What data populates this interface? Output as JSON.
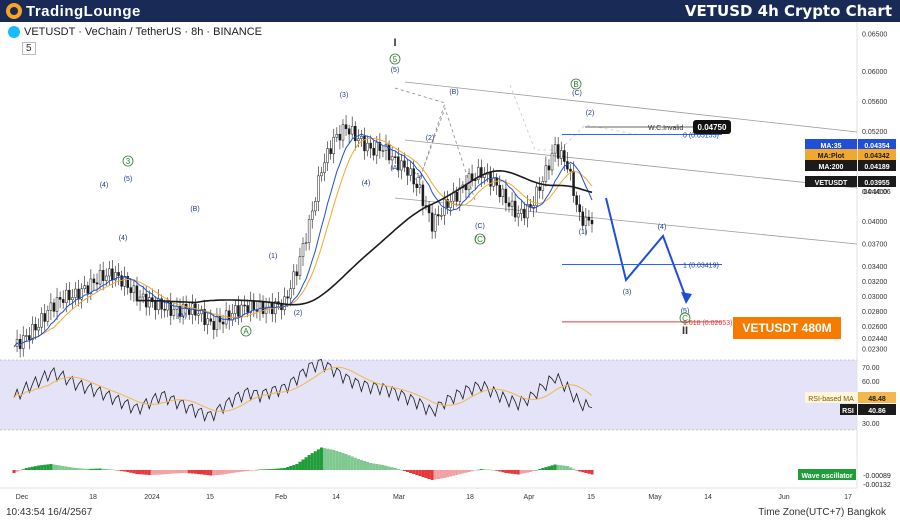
{
  "header": {
    "brand": "TradingLounge",
    "title": "VETUSD 4h Crypto Chart"
  },
  "symbol": {
    "line": "VETUSDT · VeChain / TetherUS · 8h · BINANCE",
    "interval_box": "5"
  },
  "badge": "VETUSDT 480M",
  "colors": {
    "header_bg": "#1a2a57",
    "badge_bg": "#f57c00",
    "ma35": "#1f4fd8",
    "ma_plot": "#f0a830",
    "ma200": "#1b1b1b",
    "rsi": "#1b1b1b",
    "rsi_ma": "#f2b84b",
    "positive": "#1f9d3a",
    "negative": "#e5383b",
    "fib_blue": "#2962ff",
    "fib_red": "#e5383b"
  },
  "chart_data": [
    {
      "type": "line",
      "subtype": "candlestick",
      "series_labels": [
        "MA:35",
        "MA:Plot",
        "MA:200",
        "VETUSDT"
      ],
      "price_axis": [
        "0.06500",
        "0.06000",
        "0.05600",
        "0.05200",
        "0.04800",
        "0.04400",
        "0.04000",
        "0.03700",
        "0.03400",
        "0.03200",
        "0.03000",
        "0.02800",
        "0.02600",
        "0.02440",
        "0.02300"
      ],
      "time_axis": [
        "Dec",
        "18",
        "2024",
        "15",
        "Feb",
        "14",
        "Mar",
        "18",
        "Apr",
        "15",
        "May",
        "14",
        "Jun",
        "17"
      ],
      "last_values": {
        "ma35": "0.04354",
        "ma_plot": "0.04342",
        "ma200": "0.04189",
        "price": "0.03955",
        "countdown": "04:16:06"
      },
      "fib_levels": [
        {
          "label": "0 (0.05155)",
          "value": 0.05155
        },
        {
          "label": "1 (0.03419)",
          "value": 0.03419
        },
        {
          "label": "1.618 (0.02653)",
          "value": 0.02653
        }
      ],
      "invalidation": {
        "label": "W.C.Invalid",
        "value": "0.04750"
      },
      "wave_labels": [
        "I",
        "5",
        "(5)",
        "(3)",
        "(B)",
        "(A)",
        "(2)",
        "(4)",
        "(1)",
        "(C)",
        "3",
        "(5)",
        "(4)",
        "(B)",
        "(A)",
        "A",
        "(1)",
        "(2)",
        "(4)",
        "(C)",
        "B",
        "(C)",
        "(2)",
        "(1)",
        "(4)",
        "(3)",
        "(5)",
        "C",
        "II"
      ],
      "close_series": [
        0.0232,
        0.0245,
        0.0262,
        0.0285,
        0.0298,
        0.0301,
        0.0312,
        0.0325,
        0.033,
        0.0318,
        0.03,
        0.0292,
        0.0286,
        0.028,
        0.0283,
        0.0278,
        0.0262,
        0.0268,
        0.028,
        0.0286,
        0.0283,
        0.0285,
        0.029,
        0.0335,
        0.0395,
        0.047,
        0.0508,
        0.0525,
        0.051,
        0.0495,
        0.0498,
        0.048,
        0.0468,
        0.044,
        0.0395,
        0.042,
        0.0435,
        0.0455,
        0.0465,
        0.0452,
        0.0428,
        0.0408,
        0.0418,
        0.0455,
        0.0498,
        0.0475,
        0.0405,
        0.0396
      ],
      "ylim": [
        0.0225,
        0.0655
      ]
    },
    {
      "type": "line",
      "name": "RSI",
      "axis": [
        "70.00",
        "60.00",
        "50.00",
        "40.00",
        "30.00"
      ],
      "rsi_ma_label": "RSI-based MA",
      "rsi_ma_value": "48.48",
      "rsi_label": "RSI",
      "rsi_value": "40.86",
      "values": [
        48,
        55,
        60,
        66,
        63,
        58,
        55,
        52,
        48,
        44,
        40,
        45,
        50,
        46,
        42,
        38,
        35,
        42,
        48,
        52,
        50,
        53,
        55,
        62,
        70,
        73,
        68,
        62,
        58,
        56,
        55,
        52,
        48,
        44,
        38,
        45,
        50,
        54,
        57,
        52,
        47,
        44,
        48,
        56,
        63,
        55,
        44,
        40.86
      ],
      "ylim": [
        25,
        75
      ]
    },
    {
      "type": "bar",
      "name": "Wave oscillator",
      "label": "Wave oscillator",
      "value": "-0.00089",
      "secondary": "-0.00132",
      "values": [
        -0.0006,
        0.0004,
        0.0009,
        0.0012,
        0.0008,
        0.0004,
        0.0002,
        0.0003,
        0.0001,
        -0.0003,
        -0.0008,
        -0.001,
        -0.0009,
        -0.0007,
        -0.0006,
        -0.0008,
        -0.0011,
        -0.0009,
        -0.0005,
        -0.0002,
        0.0001,
        0.0002,
        0.0004,
        0.0012,
        0.003,
        0.0045,
        0.004,
        0.0032,
        0.0022,
        0.0014,
        0.001,
        0.0004,
        -0.0004,
        -0.0012,
        -0.002,
        -0.0016,
        -0.001,
        -0.0004,
        0.0002,
        0.0,
        -0.0006,
        -0.0009,
        -0.0004,
        0.0004,
        0.0011,
        0.0008,
        -0.0003,
        -0.00089
      ]
    }
  ],
  "footer": {
    "clock": "10:43:54 16/4/2567",
    "timezone": "Time Zone(UTC+7) Bangkok"
  }
}
